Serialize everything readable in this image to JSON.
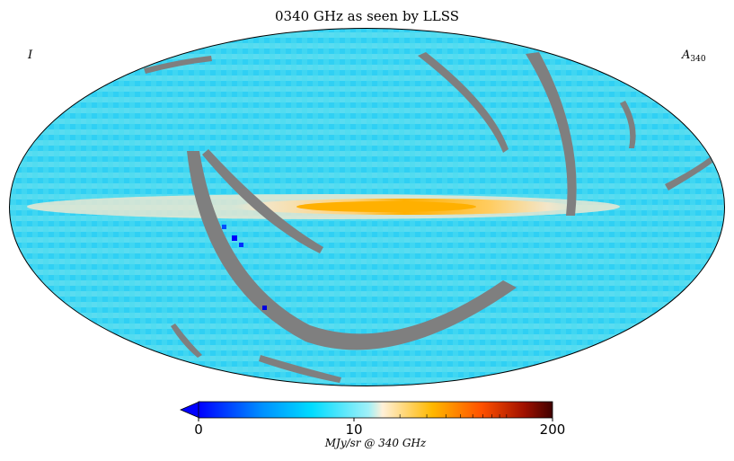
{
  "chart_data": {
    "type": "heatmap",
    "projection": "mollweide",
    "title": "0340 GHz as seen by LLSS",
    "stokes_label": "I",
    "map_label": "A",
    "map_label_sub": "340",
    "colorbar": {
      "min": 0,
      "max": 200,
      "ticks": [
        {
          "value": 0,
          "label": "0"
        },
        {
          "value": 10,
          "label": "10"
        },
        {
          "value": 200,
          "label": "200"
        }
      ],
      "label": "MJy/sr @ 340 GHz",
      "extend": "min",
      "colors": [
        "#0000ff",
        "#00a8ff",
        "#00e0ff",
        "#ffffff",
        "#ffc000",
        "#ff5000",
        "#c01000",
        "#500000"
      ]
    },
    "background_level_color": "#3dd8f4",
    "galactic_plane_color": "#ffb400",
    "masked_color": "#808080"
  }
}
